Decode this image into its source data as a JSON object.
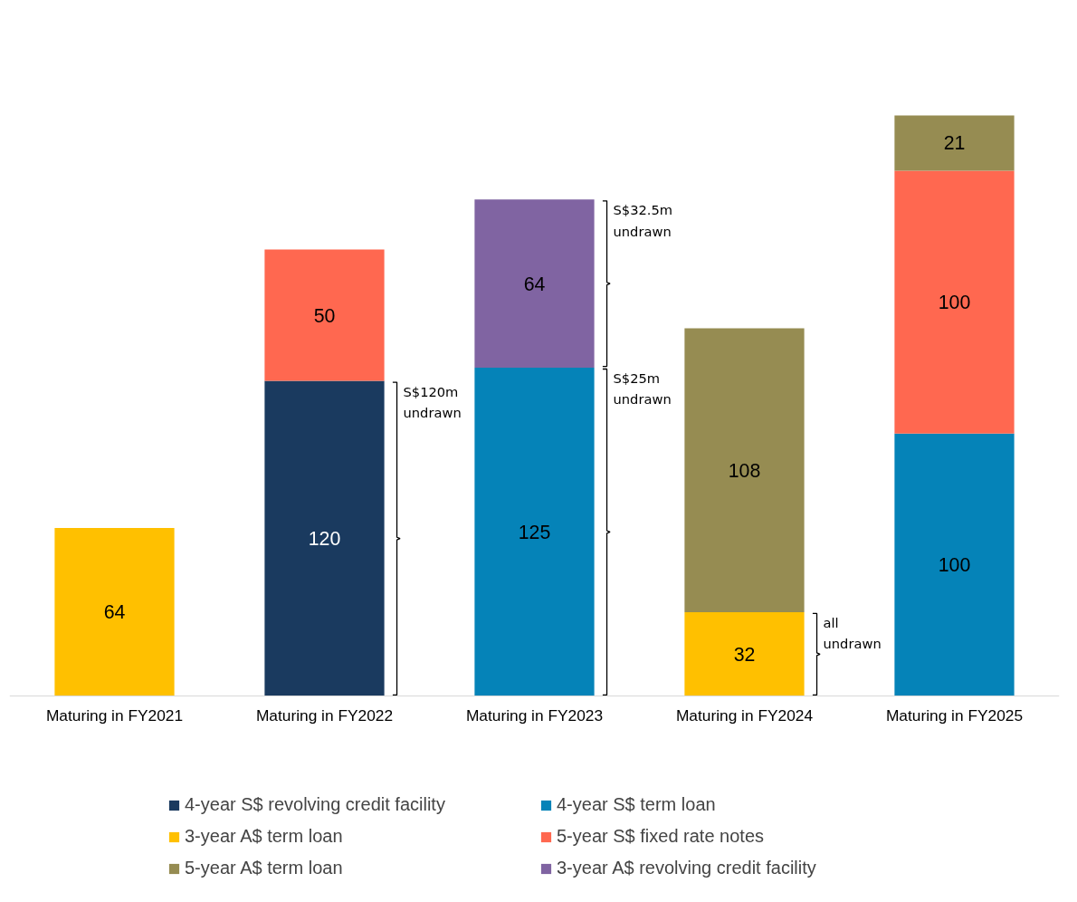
{
  "chart_data": {
    "type": "bar",
    "stacked": true,
    "data_labels": true,
    "grid": false,
    "legend": "bottom",
    "tick_labels": "x",
    "categories": [
      "Maturing in FY2021",
      "Maturing in FY2022",
      "Maturing in FY2023",
      "Maturing in FY2024",
      "Maturing in FY2025"
    ],
    "series": [
      {
        "name": "4-year S$ revolving credit facility",
        "color": "#1a3a5f",
        "values": [
          null,
          120,
          null,
          null,
          null
        ]
      },
      {
        "name": "4-year S$ term loan",
        "color": "#0583b8",
        "values": [
          null,
          null,
          125,
          null,
          100
        ]
      },
      {
        "name": "3-year A$ term loan",
        "color": "#ffc000",
        "values": [
          64,
          null,
          null,
          32,
          null
        ]
      },
      {
        "name": "5-year S$ fixed rate notes",
        "color": "#ff6850",
        "values": [
          null,
          50,
          null,
          null,
          100
        ]
      },
      {
        "name": "5-year A$ term loan",
        "color": "#968c52",
        "values": [
          null,
          null,
          null,
          108,
          21
        ]
      },
      {
        "name": "3-year A$ revolving credit facility",
        "color": "#8064a2",
        "values": [
          null,
          null,
          64,
          null,
          null
        ]
      }
    ],
    "annotations": [
      "S$120m undrawn",
      "S$32.5m undrawn",
      "S$25m undrawn",
      "all undrawn"
    ]
  }
}
